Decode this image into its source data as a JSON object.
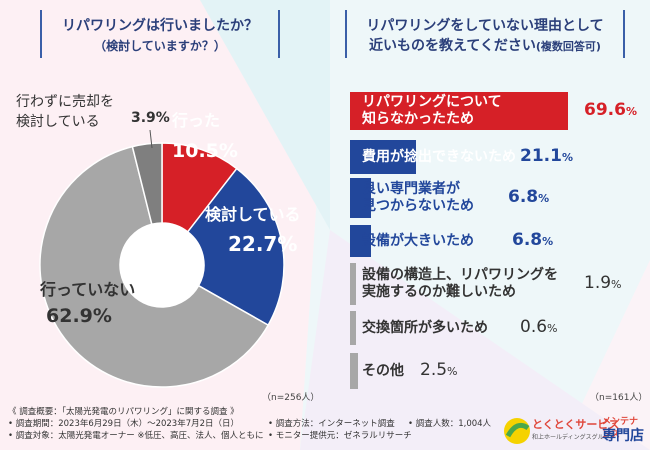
{
  "colors": {
    "red": "#d62027",
    "blue": "#22479b",
    "gray": "#a7a7a7",
    "darkgray": "#7f7f7f",
    "white": "#ffffff",
    "title": "#2b3f7a"
  },
  "left": {
    "title_line1": "リパワリングは行いましたか？",
    "title_line2": "（検討していますか？）",
    "n_note": "（n=256人）"
  },
  "right": {
    "title_line1": "リパワリングをしていない理由として",
    "title_line2": "近いものを教えてください",
    "title_line2b": "(複数回答可)",
    "n_note": "（n=161人）"
  },
  "chart_data": [
    {
      "type": "pie",
      "title": "リパワリングは行いましたか？（検討していますか？）",
      "slices": [
        {
          "label": "行った",
          "value": 10.5,
          "value_text": "10.5%",
          "color": "#d62027"
        },
        {
          "label": "検討している",
          "value": 22.7,
          "value_text": "22.7%",
          "color": "#22479b"
        },
        {
          "label": "行っていない",
          "value": 62.9,
          "value_text": "62.9%",
          "color": "#a7a7a7"
        },
        {
          "label_line1": "行わずに売却を",
          "label_line2": "検討している",
          "value": 3.9,
          "value_text": "3.9%",
          "color": "#7f7f7f"
        }
      ],
      "n": "n=256人"
    },
    {
      "type": "bar",
      "orientation": "horizontal",
      "title": "リパワリングをしていない理由として近いものを教えてください(複数回答可)",
      "xlim": [
        0,
        100
      ],
      "bars": [
        {
          "label_line1": "リパワリングについて",
          "label_line2": "知らなかったため",
          "value": 69.6,
          "value_main": "69.6",
          "value_unit": "%",
          "color": "#d62027"
        },
        {
          "label_line1": "費用が捻出できないため",
          "value": 21.1,
          "value_main": "21.1",
          "value_unit": "%",
          "color": "#22479b"
        },
        {
          "label_line1": "良い専門業者が",
          "label_line2": "見つからないため",
          "value": 6.8,
          "value_main": "6.8",
          "value_unit": "%",
          "color": "#22479b"
        },
        {
          "label_line1": "設備が大きいため",
          "value": 6.8,
          "value_main": "6.8",
          "value_unit": "%",
          "color": "#22479b"
        },
        {
          "label_line1": "設備の構造上、リパワリングを",
          "label_line2": "実施するのか難しいため",
          "value": 1.9,
          "value_main": "1.9",
          "value_unit": "%",
          "color": "#a7a7a7"
        },
        {
          "label_line1": "交換箇所が多いため",
          "value": 0.6,
          "value_main": "0.6",
          "value_unit": "%",
          "color": "#a7a7a7"
        },
        {
          "label_line1": "その他",
          "value": 2.5,
          "value_main": "2.5",
          "value_unit": "%",
          "color": "#a7a7a7"
        }
      ],
      "n": "n=161人"
    }
  ],
  "footer": {
    "line1": "《 調査概要：「太陽光発電のリパワリング」に関する調査 》",
    "line2": "• 調査期間：2023年6月29日（木）〜2023年7月2日（日）",
    "line3": "• 調査対象：太陽光発電オーナー ※低圧、高圧、法人、個人ともに",
    "method": "• 調査方法：インターネット調査",
    "monitor": "• モニター提供元：ゼネラルリサーチ",
    "people": "• 調査人数：1,004人"
  },
  "logo": {
    "brand": "とくとくサービス",
    "sub": "和上ホールディングスグループ",
    "tag1": "メンテナンス",
    "tag2": "専門店"
  }
}
